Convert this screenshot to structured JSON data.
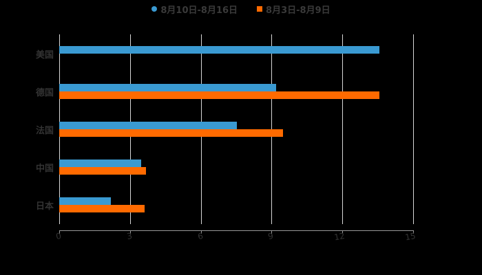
{
  "legend": [
    {
      "label": "8月10日-8月16日",
      "color": "#3a9ad2",
      "marker": "circle"
    },
    {
      "label": "8月3日-8月9日",
      "color": "#ff6a00",
      "marker": "square"
    }
  ],
  "chart_data": {
    "type": "bar",
    "orientation": "horizontal",
    "title": "",
    "xlabel": "",
    "ylabel": "",
    "categories": [
      "美国",
      "德国",
      "法国",
      "中国",
      "日本"
    ],
    "series": [
      {
        "name": "8月10日-8月16日",
        "color": "#3a9ad2",
        "values": [
          13.58,
          9.18,
          7.53,
          3.47,
          2.18
        ]
      },
      {
        "name": "8月3日-8月9日",
        "color": "#ff6a00",
        "values": [
          null,
          13.58,
          9.47,
          3.67,
          3.62
        ]
      }
    ],
    "xlim": [
      0,
      15
    ],
    "xticks": [
      "0",
      "3",
      "6",
      "9",
      "12",
      "15"
    ],
    "grid": true,
    "legend_position": "top"
  }
}
